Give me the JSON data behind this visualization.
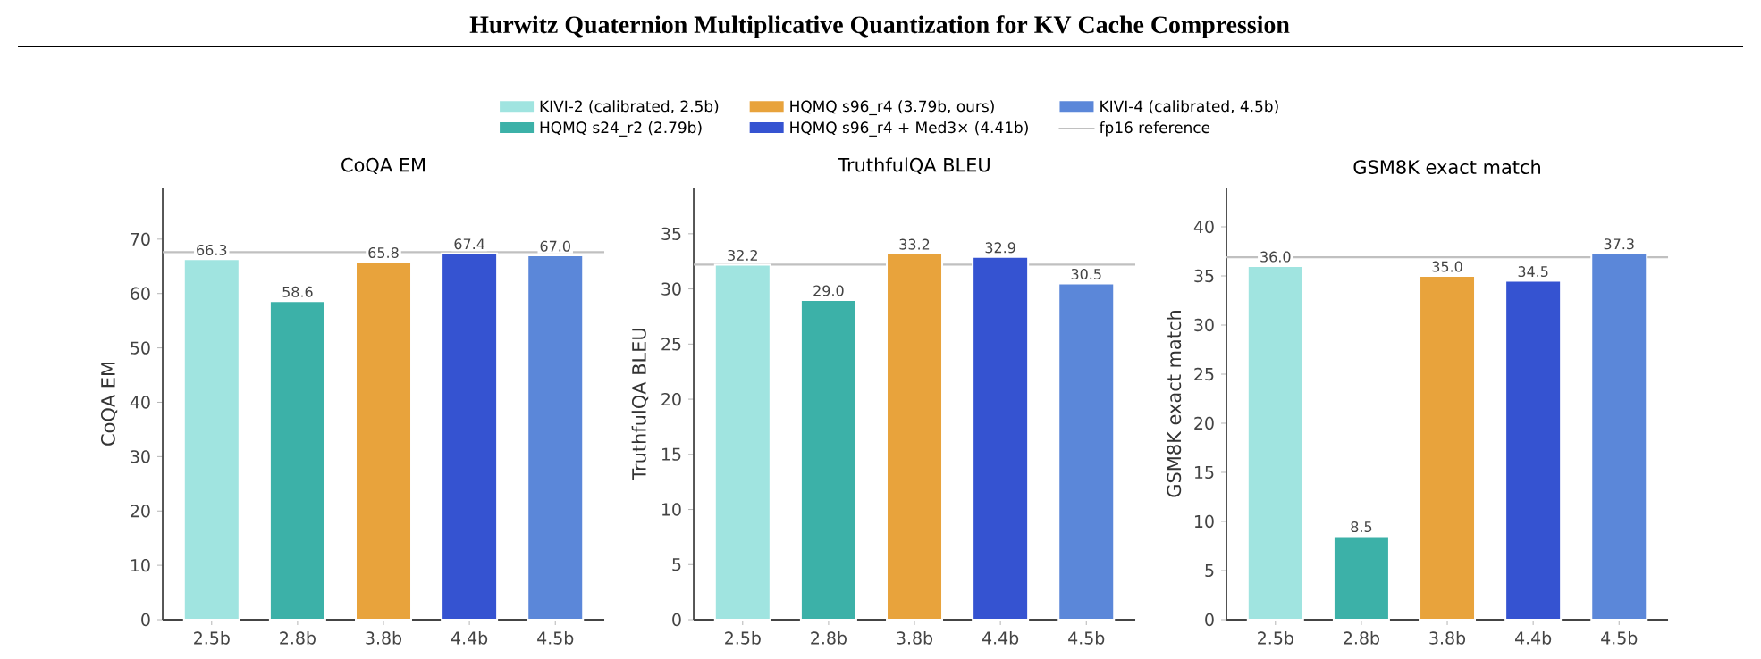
{
  "chart_data": [
    {
      "type": "bar",
      "title": "Hurwitz Quaternion Multiplicative Quantization for KV Cache Compression",
      "subtitle": "CoQA EM",
      "ylabel": "CoQA EM",
      "categories": [
        "2.5b",
        "2.8b",
        "3.8b",
        "4.4b",
        "4.5b"
      ],
      "series": [
        {
          "name": "KIVI-2 (calibrated, 2.5b)",
          "color": "#a0e4e0",
          "values": [
            66.3,
            null,
            null,
            null,
            null
          ],
          "value_labels": [
            "66.3",
            null,
            null,
            null,
            null
          ]
        },
        {
          "name": "HQMQ s24_r2 (2.79b)",
          "color": "#3cb1a8",
          "values": [
            null,
            58.6,
            null,
            null,
            null
          ],
          "value_labels": [
            null,
            "58.6",
            null,
            null,
            null
          ]
        },
        {
          "name": "HQMQ s96_r4 (3.79b, ours)",
          "color": "#e8a33c",
          "values": [
            null,
            null,
            65.8,
            null,
            null
          ],
          "value_labels": [
            null,
            null,
            "65.8",
            null,
            null
          ]
        },
        {
          "name": "HQMQ s96_r4 + Med3× (4.41b)",
          "color": "#3553d1",
          "values": [
            null,
            null,
            null,
            67.4,
            null
          ],
          "value_labels": [
            null,
            null,
            null,
            "67.4",
            null
          ]
        },
        {
          "name": "KIVI-4 (calibrated, 4.5b)",
          "color": "#5b87d9",
          "values": [
            null,
            null,
            null,
            null,
            67.0
          ],
          "value_labels": [
            null,
            null,
            null,
            null,
            "67.0"
          ]
        }
      ],
      "ylim": [
        0,
        79.5
      ],
      "yticks": [
        0,
        10,
        20,
        30,
        40,
        50,
        60,
        70
      ],
      "legend": "top",
      "ref_lines": [
        {
          "axis": "y",
          "value": 67.6,
          "label": "fp16 reference",
          "color": "#c0c0c0"
        }
      ]
    },
    {
      "type": "bar",
      "title": "TruthfulQA BLEU",
      "ylabel": "TruthfulQA BLEU",
      "categories": [
        "2.5b",
        "2.8b",
        "3.8b",
        "4.4b",
        "4.5b"
      ],
      "series": [
        {
          "color": "#a0e4e0",
          "values": [
            32.2,
            null,
            null,
            null,
            null
          ],
          "value_labels": [
            "32.2",
            null,
            null,
            null,
            null
          ]
        },
        {
          "color": "#3cb1a8",
          "values": [
            null,
            29.0,
            null,
            null,
            null
          ],
          "value_labels": [
            null,
            "29.0",
            null,
            null,
            null
          ]
        },
        {
          "color": "#e8a33c",
          "values": [
            null,
            null,
            33.2,
            null,
            null
          ],
          "value_labels": [
            null,
            null,
            "33.2",
            null,
            null
          ]
        },
        {
          "color": "#3553d1",
          "values": [
            null,
            null,
            null,
            32.9,
            null
          ],
          "value_labels": [
            null,
            null,
            null,
            "32.9",
            null
          ]
        },
        {
          "color": "#5b87d9",
          "values": [
            null,
            null,
            null,
            null,
            30.5
          ],
          "value_labels": [
            null,
            null,
            null,
            null,
            "30.5"
          ]
        }
      ],
      "ylim": [
        0,
        39.2
      ],
      "yticks": [
        0,
        5,
        10,
        15,
        20,
        25,
        30,
        35
      ],
      "ref_lines": [
        {
          "axis": "y",
          "value": 32.2,
          "color": "#c0c0c0"
        }
      ]
    },
    {
      "type": "bar",
      "title": "GSM8K exact match",
      "ylabel": "GSM8K exact match",
      "categories": [
        "2.5b",
        "2.8b",
        "3.8b",
        "4.4b",
        "4.5b"
      ],
      "series": [
        {
          "color": "#a0e4e0",
          "values": [
            36.0,
            null,
            null,
            null,
            null
          ],
          "value_labels": [
            "36.0",
            null,
            null,
            null,
            null
          ]
        },
        {
          "color": "#3cb1a8",
          "values": [
            null,
            8.5,
            null,
            null,
            null
          ],
          "value_labels": [
            null,
            "8.5",
            null,
            null,
            null
          ]
        },
        {
          "color": "#e8a33c",
          "values": [
            null,
            null,
            35.0,
            null,
            null
          ],
          "value_labels": [
            null,
            null,
            "35.0",
            null,
            null
          ]
        },
        {
          "color": "#3553d1",
          "values": [
            null,
            null,
            null,
            34.5,
            null
          ],
          "value_labels": [
            null,
            null,
            null,
            "34.5",
            null
          ]
        },
        {
          "color": "#5b87d9",
          "values": [
            null,
            null,
            null,
            null,
            37.3
          ],
          "value_labels": [
            null,
            null,
            null,
            null,
            "37.3"
          ]
        }
      ],
      "ylim": [
        0,
        44
      ],
      "yticks": [
        0,
        5,
        10,
        15,
        20,
        25,
        30,
        35,
        40
      ],
      "ref_lines": [
        {
          "axis": "y",
          "value": 36.9,
          "color": "#c0c0c0"
        }
      ]
    }
  ]
}
